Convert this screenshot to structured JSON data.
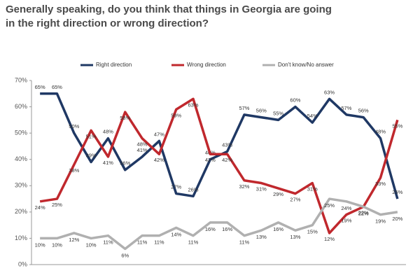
{
  "chart_data": {
    "type": "line",
    "title": [
      "Generally speaking, do you think that things in Georgia are going",
      "in the right direction or wrong direction?"
    ],
    "categories": [
      null,
      null,
      null,
      null,
      null,
      null,
      null,
      null,
      null,
      null,
      null,
      null,
      null,
      null,
      null,
      null,
      null,
      null,
      null,
      null,
      null,
      null
    ],
    "ylim": [
      0,
      70
    ],
    "yticks": [
      {
        "value": 0,
        "label": "0%"
      },
      {
        "value": 10,
        "label": "10%"
      },
      {
        "value": 20,
        "label": "20%"
      },
      {
        "value": 30,
        "label": "30%"
      },
      {
        "value": 40,
        "label": "40%"
      },
      {
        "value": 50,
        "label": "50%"
      },
      {
        "value": 60,
        "label": "60%"
      },
      {
        "value": 70,
        "label": "70%"
      }
    ],
    "series": [
      {
        "name": "Right direction",
        "color": "#1f3864",
        "values": [
          65,
          65,
          50,
          39,
          48,
          36,
          41,
          47,
          27,
          26,
          40,
          43,
          57,
          56,
          55,
          60,
          54,
          63,
          57,
          56,
          48,
          25
        ],
        "value_labels": [
          "65%",
          "65%",
          "50%",
          "39%",
          "48%",
          "36%",
          "41%",
          "47%",
          "27%",
          "26%",
          "40%",
          "43%",
          "57%",
          "56%",
          "55%",
          "60%",
          "54%",
          "63%",
          "57%",
          "56%",
          "48%",
          "25%"
        ]
      },
      {
        "name": "Wrong direction",
        "color": "#c0282d",
        "values": [
          24,
          25,
          38,
          51,
          41,
          58,
          48,
          42,
          59,
          63,
          42,
          42,
          32,
          31,
          29,
          27,
          31,
          12,
          19,
          22,
          33,
          55
        ],
        "value_labels": [
          "24%",
          "25%",
          "38%",
          "51%",
          "41%",
          "58%",
          "48%",
          "42%",
          "59%",
          "63%",
          "42%",
          "42%",
          "32%",
          "31%",
          "29%",
          "27%",
          "31%",
          "12%",
          "19%",
          "22%",
          "33%",
          "55%"
        ]
      },
      {
        "name": "Don't know/No answer",
        "color": "#b0b0b0",
        "values": [
          10,
          10,
          12,
          10,
          11,
          6,
          11,
          11,
          14,
          11,
          16,
          16,
          11,
          13,
          16,
          13,
          15,
          25,
          24,
          22,
          19,
          20
        ],
        "value_labels": [
          "10%",
          "10%",
          "12%",
          "10%",
          "11%",
          "6%",
          "11%",
          "11%",
          "14%",
          "11%",
          "16%",
          "16%",
          "11%",
          "13%",
          "16%",
          "13%",
          "15%",
          "25%",
          "24%",
          "22%",
          "19%",
          "20%"
        ]
      }
    ]
  }
}
